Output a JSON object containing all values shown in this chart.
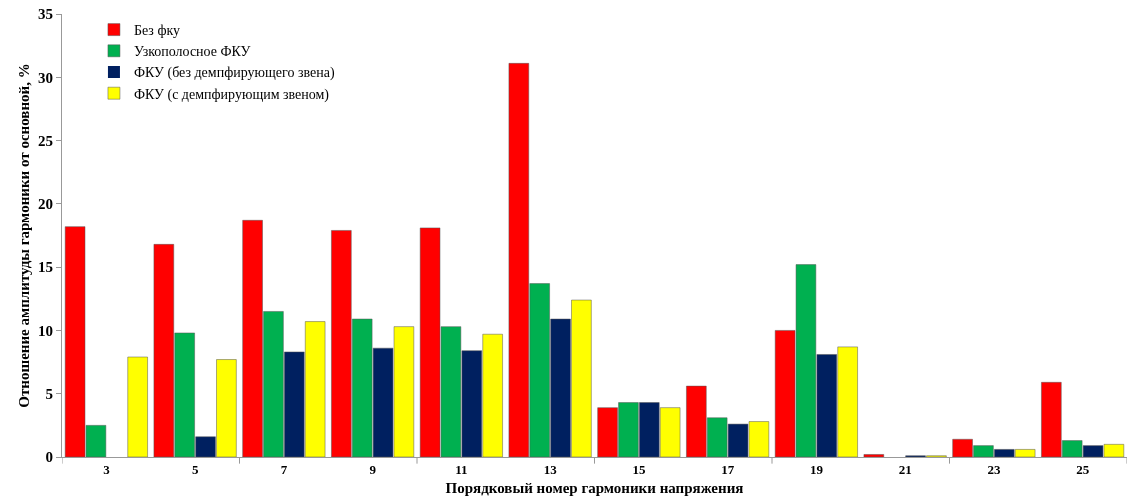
{
  "chart_data": {
    "type": "bar",
    "xlabel": "Порядковый номер гармоники напряжения",
    "ylabel": "Отношение амплитуды гармоники от основной, %",
    "categories": [
      "3",
      "5",
      "7",
      "9",
      "11",
      "13",
      "15",
      "17",
      "19",
      "21",
      "23",
      "25"
    ],
    "series": [
      {
        "name": "Без фку",
        "color": "#ff0000",
        "values": [
          18.2,
          16.8,
          18.7,
          17.9,
          18.1,
          31.1,
          3.9,
          5.6,
          10.0,
          0.2,
          1.4,
          5.9
        ]
      },
      {
        "name": "Узкополосное ФКУ",
        "color": "#00b050",
        "values": [
          2.5,
          9.8,
          11.5,
          10.9,
          10.3,
          13.7,
          4.3,
          3.1,
          15.2,
          0,
          0.9,
          1.3
        ]
      },
      {
        "name": "ФКУ (без демпфирующего звена)",
        "color": "#002060",
        "values": [
          0,
          1.6,
          8.3,
          8.6,
          8.4,
          10.9,
          4.3,
          2.6,
          8.1,
          0.1,
          0.6,
          0.9
        ]
      },
      {
        "name": "ФКУ (с демпфирующим звеном)",
        "color": "#ffff00",
        "values": [
          7.9,
          7.7,
          10.7,
          10.3,
          9.7,
          12.4,
          3.9,
          2.8,
          8.7,
          0.1,
          0.6,
          1.0
        ]
      }
    ],
    "ylim": [
      0,
      35
    ],
    "yticks": [
      0,
      5,
      10,
      15,
      20,
      25,
      30,
      35
    ],
    "legend": "top left"
  }
}
